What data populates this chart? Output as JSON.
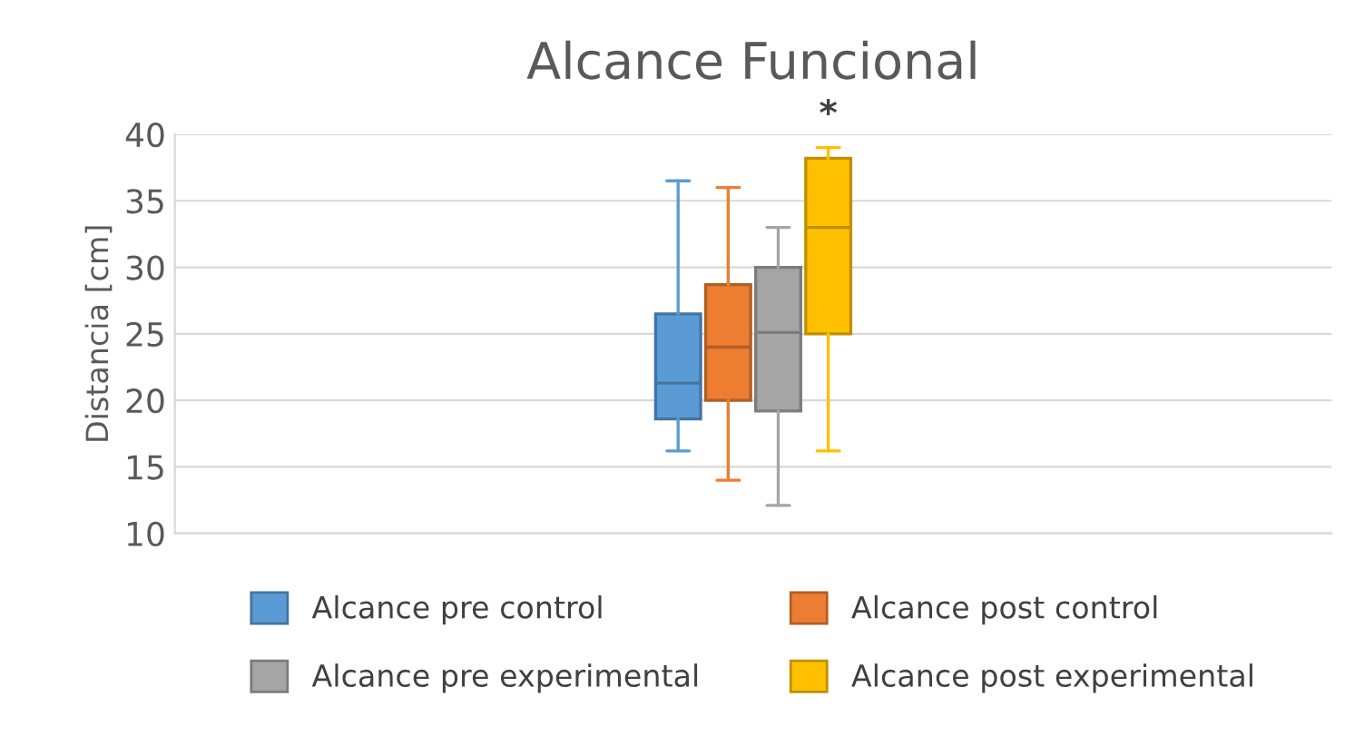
{
  "chart_data": {
    "type": "box",
    "title": "Alcance Funcional",
    "ylabel": "Distancia [cm]",
    "categories": [
      null
    ],
    "series": [
      {
        "name": "Alcance pre control",
        "color": "#5b9bd5",
        "boxes": [
          {
            "low": 16.2,
            "q1": 18.6,
            "median": 21.3,
            "q3": 26.5,
            "high": 36.5
          }
        ]
      },
      {
        "name": "Alcance post control",
        "color": "#ed7d31",
        "boxes": [
          {
            "low": 14,
            "q1": 20,
            "median": 24,
            "q3": 28.7,
            "high": 36
          }
        ]
      },
      {
        "name": "Alcance pre experimental",
        "color": "#a5a5a5",
        "boxes": [
          {
            "low": 12.1,
            "q1": 19.2,
            "median": 25.1,
            "q3": 30,
            "high": 33
          }
        ]
      },
      {
        "name": "Alcance post experimental",
        "color": "#ffc000",
        "boxes": [
          {
            "low": 16.2,
            "q1": 25,
            "median": 33,
            "q3": 38.2,
            "high": 39
          }
        ]
      }
    ],
    "annotations": [
      "*"
    ],
    "ylim": [
      10,
      40
    ],
    "yticks": [
      10,
      15,
      20,
      25,
      30,
      35,
      40
    ],
    "grid": "y",
    "legend": "bottom"
  }
}
